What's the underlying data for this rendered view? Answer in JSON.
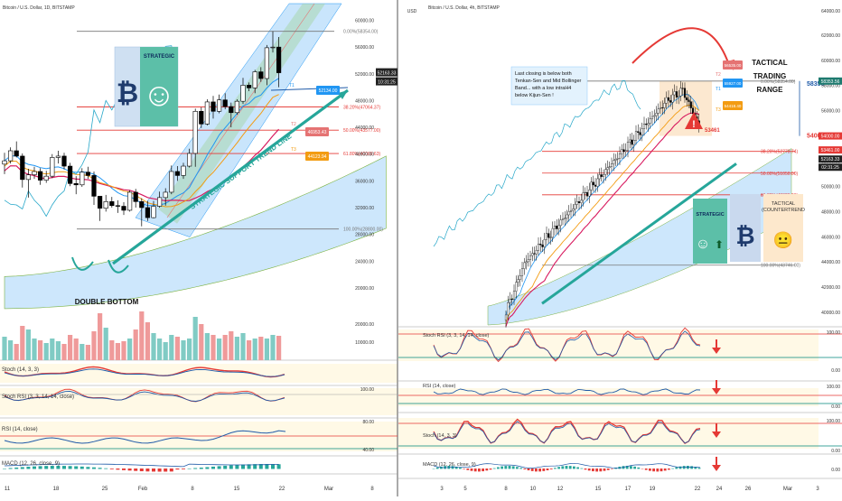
{
  "colors": {
    "up": "#ffffff",
    "down": "#000000",
    "teal": "#26a69a",
    "red": "#e53935",
    "orange": "#f39c12",
    "pink": "#d81b60",
    "blue": "#2196f3",
    "cloud": "#90caf9",
    "cyan": "#26a7c9",
    "volUp": "#80cbc4",
    "volDown": "#ef9a9a",
    "fib": "#e53935",
    "channelBlue": "#64b5f6",
    "channelGreen": "#a5d6a7",
    "banner": "#e3f2fd",
    "smile": "#2e7d6e",
    "zone": "#fff9e6",
    "tradingZone": "#fbe2c4"
  },
  "chart_data": [
    {
      "type": "candlestick",
      "panel": "left",
      "symbol": "Bitcoin / U.S. Dollar, 1D, BITSTAMP",
      "price_axis": {
        "range": [
          18500,
          62500
        ],
        "ticks": [
          20000,
          24000,
          28000,
          32000,
          36000,
          40000,
          44000,
          48000,
          52000,
          56000,
          60000
        ]
      },
      "time_axis": [
        "11",
        "18",
        "25",
        "Feb",
        "8",
        "15",
        "22",
        "Mar",
        "8"
      ],
      "current_price": "52163.33",
      "countdown": "10:31:25",
      "fib_levels": [
        {
          "label": "0.00%(58354.00)",
          "value": 58354.0
        },
        {
          "label": "38.20%(47064.37)",
          "value": 47064.37
        },
        {
          "label": "50.00%(43577.00)",
          "value": 43577.0
        },
        {
          "label": "61.80%(40089.63)",
          "value": 40089.63
        },
        {
          "label": "100.00%(28800.00)",
          "value": 28800.0
        }
      ],
      "target_tags": [
        "52134.00",
        "46953.43",
        "44123.94"
      ],
      "candles": [
        [
          38500,
          40200,
          37000,
          39000
        ],
        [
          39000,
          41000,
          38600,
          40500
        ],
        [
          40500,
          41900,
          39500,
          39700
        ],
        [
          39700,
          40100,
          35000,
          36200
        ],
        [
          36200,
          37800,
          33500,
          36900
        ],
        [
          36900,
          38100,
          36300,
          37400
        ],
        [
          37400,
          37900,
          35400,
          36100
        ],
        [
          36100,
          37500,
          35700,
          36700
        ],
        [
          36700,
          40000,
          36400,
          39500
        ],
        [
          39500,
          40500,
          38600,
          39700
        ],
        [
          39700,
          40200,
          37700,
          38200
        ],
        [
          38200,
          38700,
          35200,
          35600
        ],
        [
          35600,
          36700,
          34000,
          35400
        ],
        [
          35400,
          37900,
          35100,
          37300
        ],
        [
          37300,
          38100,
          36300,
          36800
        ],
        [
          36800,
          37400,
          32400,
          33700
        ],
        [
          33700,
          33700,
          30000,
          31900
        ],
        [
          31900,
          33900,
          31400,
          32900
        ],
        [
          32900,
          33600,
          32000,
          32300
        ],
        [
          32300,
          33100,
          31200,
          32200
        ],
        [
          32200,
          32800,
          30900,
          31600
        ],
        [
          31600,
          34600,
          31400,
          34300
        ],
        [
          34300,
          34800,
          32000,
          32900
        ],
        [
          32900,
          33400,
          29200,
          32000
        ],
        [
          32000,
          33000,
          30000,
          30500
        ],
        [
          30500,
          33000,
          30400,
          32200
        ],
        [
          32200,
          34400,
          32000,
          33500
        ],
        [
          33500,
          34900,
          32300,
          34300
        ],
        [
          34300,
          38300,
          34000,
          37400
        ],
        [
          37400,
          38200,
          36000,
          36800
        ],
        [
          36800,
          38700,
          36300,
          38200
        ],
        [
          38200,
          40800,
          38000,
          40100
        ],
        [
          40100,
          46800,
          38100,
          46400
        ],
        [
          46400,
          47000,
          43900,
          44500
        ],
        [
          44500,
          48200,
          44300,
          47800
        ],
        [
          47800,
          48700,
          45300,
          46400
        ],
        [
          46400,
          48900,
          46100,
          48100
        ],
        [
          48100,
          49100,
          46700,
          47100
        ],
        [
          47100,
          47700,
          44000,
          46200
        ],
        [
          46200,
          48200,
          45900,
          47900
        ],
        [
          47900,
          51400,
          47500,
          50300
        ],
        [
          50300,
          50700,
          49400,
          49900
        ],
        [
          49900,
          52600,
          49100,
          52300
        ],
        [
          52300,
          53000,
          50800,
          51300
        ],
        [
          51300,
          56300,
          50300,
          55900
        ],
        [
          55900,
          58354,
          55200,
          56000
        ],
        [
          56000,
          57500,
          50000,
          52163
        ]
      ],
      "volume_axis": {
        "range": [
          0,
          30000
        ],
        "ticks": [
          10000,
          20000
        ]
      },
      "volume": [
        13000,
        11000,
        9000,
        19000,
        17000,
        12000,
        11000,
        9500,
        12000,
        10500,
        9000,
        14000,
        12000,
        9000,
        8500,
        16000,
        26000,
        18000,
        11000,
        9500,
        10500,
        12000,
        17000,
        27000,
        21000,
        15000,
        12000,
        10000,
        14000,
        13000,
        11000,
        12000,
        24000,
        20000,
        15000,
        14000,
        12000,
        14000,
        16000,
        13000,
        15000,
        11000,
        12000,
        13000,
        12000,
        14000,
        13500
      ],
      "annotations": {
        "strategic_label": "STRATEGIC",
        "bitcoin_symbol": "₿",
        "smile_symbol": "☺",
        "trendline_label": "STRATEGIC SUPPORT TREND LINE",
        "double_bottom": "DOUBLE BOTTOM",
        "t1": "T1",
        "t2": "T2",
        "t3": "T3"
      },
      "indicators": [
        {
          "name": "Stoch (14, 3, 3)",
          "axis": []
        },
        {
          "name": "Stoch RSI (3, 3, 14, 14, close)",
          "axis": [
            "100.00"
          ]
        },
        {
          "name": "RSI (14, close)",
          "axis": [
            "80.00",
            "40.00"
          ]
        },
        {
          "name": "MACD (12, 26, close, 9)",
          "axis": []
        }
      ]
    },
    {
      "type": "candlestick",
      "panel": "right",
      "symbol": "Bitcoin / U.S. Dollar, 4h, BITSTAMP",
      "currency": "USD",
      "price_axis": {
        "range": [
          39000,
          64500
        ],
        "ticks": [
          40000,
          42000,
          44000,
          46000,
          48000,
          50000,
          52000,
          54000,
          56000,
          58000,
          60000,
          62000,
          64000
        ]
      },
      "time_axis": [
        "3",
        "5",
        "8",
        "10",
        "12",
        "15",
        "17",
        "19",
        "22",
        "24",
        "26",
        "Mar",
        "3"
      ],
      "current_price": "52163.33",
      "countdown": "02:31:25",
      "top_label": "USD",
      "top_value": "64000.00",
      "extra_price_tags": [
        "58353.56",
        "54000.00",
        "53461.00"
      ],
      "fib_levels": [
        {
          "label": "0.00%(58354.00)",
          "value": 58354.0
        },
        {
          "label": "38.20%(52773.74)",
          "value": 52773.74
        },
        {
          "label": "50.00%(51050.00)",
          "value": 51050.0
        },
        {
          "label": "61.80%(49326.26)",
          "value": 49326.26
        },
        {
          "label": "100.00%(43746.00)",
          "value": 43746.0
        }
      ],
      "range_markers": [
        "58350",
        "54000"
      ],
      "target_tags": [
        "56535.00",
        "55927.00",
        "54418.40"
      ],
      "stop_value": "53461",
      "annotations": {
        "note": "Last closing is below both Tenkan-Sen and Mid Bollinger Band... with a low intraH4 below Kijun-Sen !",
        "tactical_range": "TACTICAL TRADING RANGE",
        "strategic_label": "STRATEGIC",
        "tactical_counter": "TACTICAL (COUNTERTREND !)",
        "bitcoin_symbol": "₿",
        "smile_symbol": "☺",
        "neutral_symbol": "😐",
        "up_arrow": "⬆",
        "warning": "!",
        "t1": "T1",
        "t2": "T2",
        "t3": "T3"
      },
      "indicators": [
        {
          "name": "Stoch RSI (3, 3, 14, 14, close)",
          "axis": [
            "100.00",
            "0.00"
          ]
        },
        {
          "name": "RSI (14, close)",
          "axis": [
            "100.00",
            "0.00"
          ]
        },
        {
          "name": "Stoch (14, 3, 3)",
          "axis": [
            "100.00",
            "0.00"
          ]
        },
        {
          "name": "MACD (12, 26, close, 9)",
          "axis": [
            "0.00"
          ]
        }
      ]
    }
  ]
}
